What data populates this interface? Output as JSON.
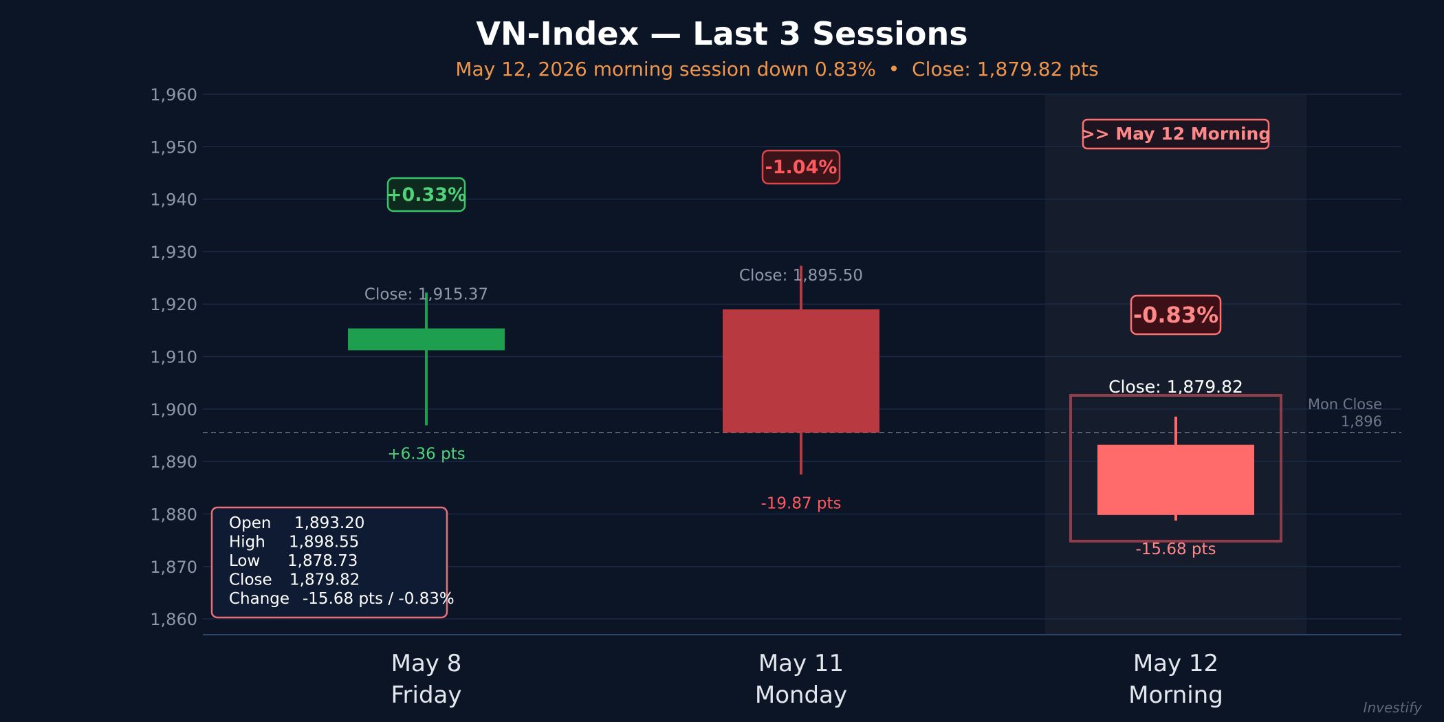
{
  "chart_data": {
    "type": "candlestick",
    "title": "VN-Index — Last 3 Sessions",
    "subtitle": "May 12, 2026 morning session down 0.83%  •  Close: 1,879.82 pts",
    "ylim": [
      1857,
      1960
    ],
    "yticks": [
      1860,
      1870,
      1880,
      1890,
      1900,
      1910,
      1920,
      1930,
      1940,
      1950,
      1960
    ],
    "ytick_labels": [
      "1,860",
      "1,870",
      "1,880",
      "1,890",
      "1,900",
      "1,910",
      "1,920",
      "1,930",
      "1,940",
      "1,950",
      "1,960"
    ],
    "grid": true,
    "reference_line": {
      "value": 1895.5,
      "label_line1": "Mon Close",
      "label_line2": "1,896"
    },
    "sessions": [
      {
        "date": "May 8",
        "day": "Friday",
        "open": 1911.2,
        "high": 1922.2,
        "low": 1896.9,
        "close": 1915.37,
        "close_label": "Close: 1,915.37",
        "change_pts": "+6.36 pts",
        "change_pct": "+0.33%",
        "color": "#1e9e4f",
        "badge_color": "#39c46a",
        "badge_text_color": "#4fd27a",
        "highlight": false
      },
      {
        "date": "May 11",
        "day": "Monday",
        "open": 1919.0,
        "high": 1927.3,
        "low": 1887.5,
        "close": 1895.5,
        "close_label": "Close: 1,895.50",
        "change_pts": "-19.87 pts",
        "change_pct": "-1.04%",
        "color": "#b83a40",
        "badge_color": "#d9464c",
        "badge_text_color": "#ff5a5f",
        "highlight": false
      },
      {
        "date": "May 12",
        "day": "Morning",
        "open": 1893.2,
        "high": 1898.55,
        "low": 1878.73,
        "close": 1879.82,
        "close_label": "Close: 1,879.82",
        "change_pts": "-15.68 pts",
        "change_pct": "-0.83%",
        "color": "#ff6b6b",
        "badge_color": "#ff7070",
        "badge_text_color": "#ff8888",
        "highlight": true,
        "highlight_label": ">> May 12 Morning"
      }
    ],
    "ohlc_box": [
      {
        "key": "Open",
        "value": "1,893.20"
      },
      {
        "key": "High",
        "value": "1,898.55"
      },
      {
        "key": "Low",
        "value": "1,878.73"
      },
      {
        "key": "Close",
        "value": "1,879.82"
      },
      {
        "key": "Change",
        "value": "-15.68 pts / -0.83%"
      }
    ]
  },
  "watermark": "Investify",
  "colors": {
    "background": "#0b1526",
    "grid": "#1a2a48",
    "highlight_band": "#151d2c",
    "ohlc_border": "#e8717a"
  }
}
